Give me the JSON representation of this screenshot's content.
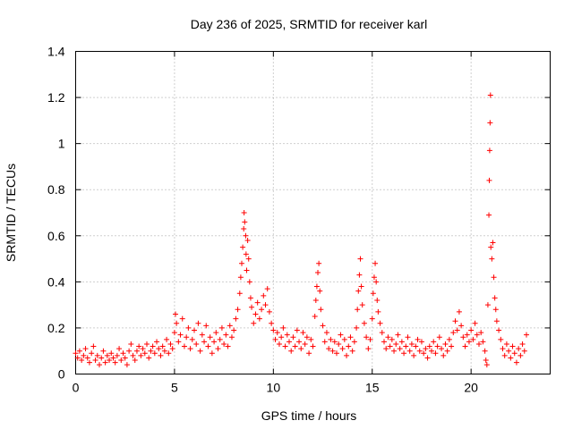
{
  "chart_data": {
    "type": "scatter",
    "title": "Day 236 of 2025, SRMTID for receiver karl",
    "xlabel": "GPS time / hours",
    "ylabel": "SRMTID / TECUs",
    "xlim": [
      0,
      24
    ],
    "ylim": [
      0,
      1.4
    ],
    "xticks": [
      0,
      5,
      10,
      15,
      20
    ],
    "yticks": [
      0,
      0.2,
      0.4,
      0.6,
      0.8,
      1,
      1.2,
      1.4
    ],
    "xtick_labels": [
      "0",
      "5",
      "10",
      "15",
      "20"
    ],
    "ytick_labels": [
      "0",
      "0.2",
      "0.4",
      "0.6",
      "0.8",
      "1",
      "1.2",
      "1.4"
    ],
    "grid": true,
    "marker": "+",
    "color": "#ff0000",
    "series": [
      {
        "name": "SRMTID",
        "points": [
          [
            0.0,
            0.09
          ],
          [
            0.1,
            0.07
          ],
          [
            0.2,
            0.1
          ],
          [
            0.3,
            0.06
          ],
          [
            0.4,
            0.08
          ],
          [
            0.5,
            0.11
          ],
          [
            0.6,
            0.07
          ],
          [
            0.7,
            0.05
          ],
          [
            0.8,
            0.09
          ],
          [
            0.9,
            0.12
          ],
          [
            1.0,
            0.06
          ],
          [
            1.1,
            0.08
          ],
          [
            1.2,
            0.04
          ],
          [
            1.3,
            0.07
          ],
          [
            1.4,
            0.1
          ],
          [
            1.5,
            0.05
          ],
          [
            1.6,
            0.08
          ],
          [
            1.7,
            0.06
          ],
          [
            1.8,
            0.09
          ],
          [
            1.9,
            0.07
          ],
          [
            2.0,
            0.05
          ],
          [
            2.1,
            0.08
          ],
          [
            2.2,
            0.11
          ],
          [
            2.3,
            0.06
          ],
          [
            2.4,
            0.09
          ],
          [
            2.5,
            0.07
          ],
          [
            2.6,
            0.04
          ],
          [
            2.7,
            0.1
          ],
          [
            2.8,
            0.13
          ],
          [
            2.9,
            0.08
          ],
          [
            3.0,
            0.06
          ],
          [
            3.1,
            0.1
          ],
          [
            3.2,
            0.12
          ],
          [
            3.3,
            0.08
          ],
          [
            3.4,
            0.11
          ],
          [
            3.5,
            0.09
          ],
          [
            3.6,
            0.13
          ],
          [
            3.7,
            0.07
          ],
          [
            3.8,
            0.1
          ],
          [
            3.9,
            0.12
          ],
          [
            4.0,
            0.09
          ],
          [
            4.1,
            0.14
          ],
          [
            4.2,
            0.11
          ],
          [
            4.3,
            0.08
          ],
          [
            4.4,
            0.12
          ],
          [
            4.5,
            0.1
          ],
          [
            4.6,
            0.15
          ],
          [
            4.7,
            0.09
          ],
          [
            4.8,
            0.13
          ],
          [
            4.9,
            0.11
          ],
          [
            5.0,
            0.18
          ],
          [
            5.05,
            0.26
          ],
          [
            5.1,
            0.22
          ],
          [
            5.2,
            0.14
          ],
          [
            5.3,
            0.17
          ],
          [
            5.4,
            0.24
          ],
          [
            5.5,
            0.12
          ],
          [
            5.6,
            0.16
          ],
          [
            5.7,
            0.2
          ],
          [
            5.8,
            0.11
          ],
          [
            5.9,
            0.15
          ],
          [
            6.0,
            0.19
          ],
          [
            6.1,
            0.13
          ],
          [
            6.2,
            0.22
          ],
          [
            6.3,
            0.1
          ],
          [
            6.4,
            0.17
          ],
          [
            6.5,
            0.14
          ],
          [
            6.6,
            0.21
          ],
          [
            6.7,
            0.12
          ],
          [
            6.8,
            0.16
          ],
          [
            6.9,
            0.09
          ],
          [
            7.0,
            0.14
          ],
          [
            7.1,
            0.18
          ],
          [
            7.2,
            0.11
          ],
          [
            7.3,
            0.15
          ],
          [
            7.4,
            0.2
          ],
          [
            7.5,
            0.13
          ],
          [
            7.6,
            0.17
          ],
          [
            7.7,
            0.12
          ],
          [
            7.8,
            0.21
          ],
          [
            7.9,
            0.16
          ],
          [
            8.0,
            0.19
          ],
          [
            8.1,
            0.24
          ],
          [
            8.2,
            0.28
          ],
          [
            8.3,
            0.35
          ],
          [
            8.35,
            0.42
          ],
          [
            8.4,
            0.48
          ],
          [
            8.45,
            0.55
          ],
          [
            8.5,
            0.63
          ],
          [
            8.52,
            0.7
          ],
          [
            8.55,
            0.66
          ],
          [
            8.6,
            0.6
          ],
          [
            8.62,
            0.52
          ],
          [
            8.65,
            0.45
          ],
          [
            8.7,
            0.58
          ],
          [
            8.75,
            0.5
          ],
          [
            8.8,
            0.4
          ],
          [
            8.85,
            0.33
          ],
          [
            8.9,
            0.29
          ],
          [
            9.0,
            0.22
          ],
          [
            9.1,
            0.26
          ],
          [
            9.2,
            0.31
          ],
          [
            9.3,
            0.24
          ],
          [
            9.4,
            0.28
          ],
          [
            9.5,
            0.34
          ],
          [
            9.6,
            0.3
          ],
          [
            9.7,
            0.37
          ],
          [
            9.8,
            0.27
          ],
          [
            9.9,
            0.22
          ],
          [
            10.0,
            0.19
          ],
          [
            10.1,
            0.15
          ],
          [
            10.2,
            0.18
          ],
          [
            10.3,
            0.13
          ],
          [
            10.4,
            0.16
          ],
          [
            10.5,
            0.2
          ],
          [
            10.6,
            0.12
          ],
          [
            10.7,
            0.17
          ],
          [
            10.8,
            0.14
          ],
          [
            10.9,
            0.1
          ],
          [
            11.0,
            0.16
          ],
          [
            11.1,
            0.12
          ],
          [
            11.2,
            0.19
          ],
          [
            11.3,
            0.14
          ],
          [
            11.4,
            0.11
          ],
          [
            11.5,
            0.18
          ],
          [
            11.6,
            0.13
          ],
          [
            11.7,
            0.16
          ],
          [
            11.8,
            0.09
          ],
          [
            11.9,
            0.15
          ],
          [
            12.0,
            0.12
          ],
          [
            12.1,
            0.25
          ],
          [
            12.15,
            0.32
          ],
          [
            12.2,
            0.38
          ],
          [
            12.25,
            0.44
          ],
          [
            12.3,
            0.48
          ],
          [
            12.35,
            0.36
          ],
          [
            12.4,
            0.28
          ],
          [
            12.5,
            0.21
          ],
          [
            12.6,
            0.14
          ],
          [
            12.7,
            0.18
          ],
          [
            12.8,
            0.11
          ],
          [
            12.9,
            0.15
          ],
          [
            13.0,
            0.1
          ],
          [
            13.1,
            0.14
          ],
          [
            13.2,
            0.09
          ],
          [
            13.3,
            0.13
          ],
          [
            13.4,
            0.17
          ],
          [
            13.5,
            0.11
          ],
          [
            13.6,
            0.15
          ],
          [
            13.7,
            0.08
          ],
          [
            13.8,
            0.12
          ],
          [
            13.9,
            0.16
          ],
          [
            14.0,
            0.1
          ],
          [
            14.1,
            0.14
          ],
          [
            14.2,
            0.2
          ],
          [
            14.25,
            0.28
          ],
          [
            14.3,
            0.36
          ],
          [
            14.35,
            0.43
          ],
          [
            14.4,
            0.5
          ],
          [
            14.45,
            0.38
          ],
          [
            14.5,
            0.3
          ],
          [
            14.6,
            0.22
          ],
          [
            14.7,
            0.16
          ],
          [
            14.8,
            0.11
          ],
          [
            14.9,
            0.15
          ],
          [
            15.0,
            0.24
          ],
          [
            15.05,
            0.35
          ],
          [
            15.1,
            0.42
          ],
          [
            15.15,
            0.48
          ],
          [
            15.2,
            0.4
          ],
          [
            15.25,
            0.32
          ],
          [
            15.3,
            0.27
          ],
          [
            15.4,
            0.22
          ],
          [
            15.5,
            0.18
          ],
          [
            15.6,
            0.14
          ],
          [
            15.7,
            0.11
          ],
          [
            15.8,
            0.16
          ],
          [
            15.9,
            0.12
          ],
          [
            16.0,
            0.15
          ],
          [
            16.1,
            0.1
          ],
          [
            16.2,
            0.13
          ],
          [
            16.3,
            0.17
          ],
          [
            16.4,
            0.11
          ],
          [
            16.5,
            0.14
          ],
          [
            16.6,
            0.09
          ],
          [
            16.7,
            0.12
          ],
          [
            16.8,
            0.16
          ],
          [
            16.9,
            0.1
          ],
          [
            17.0,
            0.13
          ],
          [
            17.1,
            0.08
          ],
          [
            17.2,
            0.12
          ],
          [
            17.3,
            0.15
          ],
          [
            17.4,
            0.1
          ],
          [
            17.5,
            0.14
          ],
          [
            17.6,
            0.09
          ],
          [
            17.7,
            0.11
          ],
          [
            17.8,
            0.07
          ],
          [
            17.9,
            0.12
          ],
          [
            18.0,
            0.1
          ],
          [
            18.1,
            0.14
          ],
          [
            18.2,
            0.09
          ],
          [
            18.3,
            0.12
          ],
          [
            18.4,
            0.16
          ],
          [
            18.5,
            0.11
          ],
          [
            18.6,
            0.08
          ],
          [
            18.7,
            0.13
          ],
          [
            18.8,
            0.1
          ],
          [
            18.9,
            0.15
          ],
          [
            19.0,
            0.12
          ],
          [
            19.1,
            0.18
          ],
          [
            19.2,
            0.23
          ],
          [
            19.3,
            0.19
          ],
          [
            19.4,
            0.27
          ],
          [
            19.5,
            0.21
          ],
          [
            19.6,
            0.16
          ],
          [
            19.7,
            0.12
          ],
          [
            19.8,
            0.17
          ],
          [
            19.9,
            0.14
          ],
          [
            20.0,
            0.19
          ],
          [
            20.1,
            0.15
          ],
          [
            20.2,
            0.22
          ],
          [
            20.3,
            0.17
          ],
          [
            20.4,
            0.13
          ],
          [
            20.5,
            0.18
          ],
          [
            20.6,
            0.14
          ],
          [
            20.7,
            0.1
          ],
          [
            20.75,
            0.06
          ],
          [
            20.8,
            0.04
          ],
          [
            20.85,
            0.3
          ],
          [
            20.9,
            0.69
          ],
          [
            20.92,
            0.84
          ],
          [
            20.94,
            0.97
          ],
          [
            20.96,
            1.09
          ],
          [
            20.98,
            1.21
          ],
          [
            21.0,
            0.55
          ],
          [
            21.05,
            0.5
          ],
          [
            21.1,
            0.57
          ],
          [
            21.15,
            0.42
          ],
          [
            21.2,
            0.33
          ],
          [
            21.25,
            0.28
          ],
          [
            21.3,
            0.23
          ],
          [
            21.4,
            0.19
          ],
          [
            21.5,
            0.15
          ],
          [
            21.6,
            0.11
          ],
          [
            21.7,
            0.08
          ],
          [
            21.8,
            0.13
          ],
          [
            21.9,
            0.1
          ],
          [
            22.0,
            0.07
          ],
          [
            22.1,
            0.12
          ],
          [
            22.2,
            0.09
          ],
          [
            22.3,
            0.05
          ],
          [
            22.4,
            0.11
          ],
          [
            22.5,
            0.08
          ],
          [
            22.6,
            0.13
          ],
          [
            22.7,
            0.1
          ],
          [
            22.8,
            0.17
          ]
        ]
      }
    ]
  }
}
